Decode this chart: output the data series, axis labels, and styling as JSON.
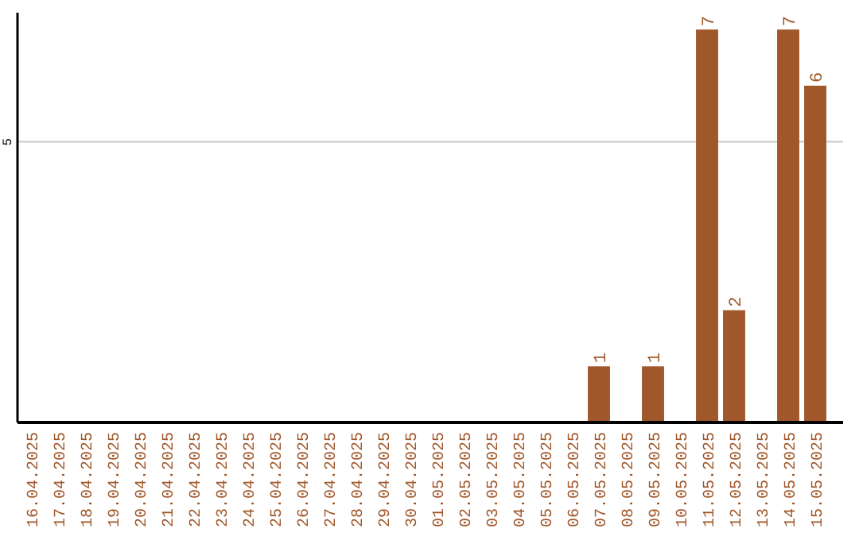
{
  "chart_data": {
    "type": "bar",
    "categories": [
      "16.04.2025",
      "17.04.2025",
      "18.04.2025",
      "19.04.2025",
      "20.04.2025",
      "21.04.2025",
      "22.04.2025",
      "23.04.2025",
      "24.04.2025",
      "25.04.2025",
      "26.04.2025",
      "27.04.2025",
      "28.04.2025",
      "29.04.2025",
      "30.04.2025",
      "01.05.2025",
      "02.05.2025",
      "03.05.2025",
      "04.05.2025",
      "05.05.2025",
      "06.05.2025",
      "07.05.2025",
      "08.05.2025",
      "09.05.2025",
      "10.05.2025",
      "11.05.2025",
      "12.05.2025",
      "13.05.2025",
      "14.05.2025",
      "15.05.2025"
    ],
    "values": [
      null,
      null,
      null,
      null,
      null,
      null,
      null,
      null,
      null,
      null,
      null,
      null,
      null,
      null,
      null,
      null,
      null,
      null,
      null,
      null,
      null,
      1,
      null,
      1,
      null,
      7,
      2,
      null,
      7,
      6
    ],
    "ylim": [
      0,
      7.3
    ],
    "data_labels": true,
    "color": "#a0572a",
    "yticks": [
      5
    ],
    "grid": "y"
  }
}
